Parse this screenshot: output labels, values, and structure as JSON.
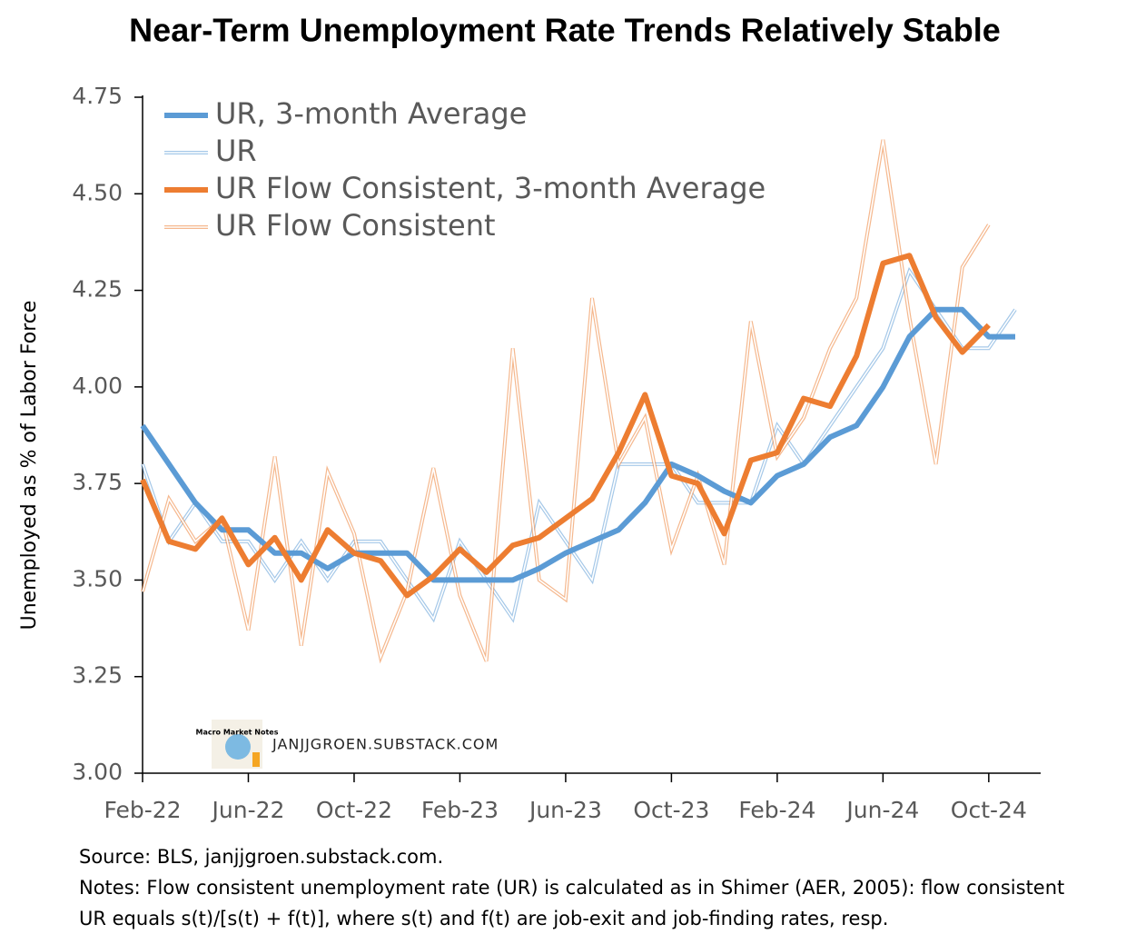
{
  "chart_data": {
    "type": "line",
    "title": "Near-Term Unemployment Rate Trends Relatively Stable",
    "y_label": "Unemployed as % of Labor Force",
    "watermark": "JANJJGROEN.SUBSTACK.COM",
    "logo_text": "Macro Market Notes",
    "source": "Source: BLS, janjjgroen.substack.com.",
    "notes": [
      "Notes: Flow consistent unemployment rate (UR) is calculated as in Shimer (AER, 2005):  flow consistent",
      "UR equals s(t)/[s(t) + f(t)], where s(t) and f(t) are job-exit and job-finding rates, resp."
    ],
    "categories": [
      "Feb-22",
      null,
      null,
      null,
      "Jun-22",
      null,
      null,
      null,
      "Oct-22",
      null,
      null,
      null,
      "Feb-23",
      null,
      null,
      null,
      "Jun-23",
      null,
      null,
      null,
      "Oct-23",
      null,
      null,
      null,
      "Feb-24",
      null,
      null,
      null,
      "Jun-24",
      null,
      null,
      null,
      "Oct-24",
      null
    ],
    "ylim": [
      3.0,
      4.75
    ],
    "yticks": [
      {
        "value": 3.0,
        "label": "3.00"
      },
      3.25,
      {
        "value": 3.5,
        "label": "3.50"
      },
      3.75,
      {
        "value": 4.0,
        "label": "4.00"
      },
      4.25,
      {
        "value": 4.5,
        "label": "4.50"
      },
      4.75
    ],
    "legend": "upper left",
    "series": [
      {
        "name": "UR, 3-month Average",
        "color": "#5b9bd5",
        "style": "thick",
        "values": [
          3.9,
          3.8,
          3.7,
          3.63,
          3.63,
          3.57,
          3.57,
          3.53,
          3.57,
          3.57,
          3.57,
          3.5,
          3.5,
          3.5,
          3.5,
          3.53,
          3.57,
          3.6,
          3.63,
          3.7,
          3.8,
          3.77,
          3.73,
          3.7,
          3.77,
          3.8,
          3.87,
          3.9,
          4.0,
          4.13,
          4.2,
          4.2,
          4.13,
          4.13
        ]
      },
      {
        "name": "UR",
        "color": "#5b9bd5",
        "style": "double",
        "values": [
          3.8,
          3.6,
          3.7,
          3.6,
          3.6,
          3.5,
          3.6,
          3.5,
          3.6,
          3.6,
          3.5,
          3.4,
          3.6,
          3.5,
          3.4,
          3.7,
          3.6,
          3.5,
          3.8,
          3.8,
          3.8,
          3.7,
          3.7,
          3.7,
          3.9,
          3.8,
          3.9,
          4.0,
          4.1,
          4.3,
          4.2,
          4.1,
          4.1,
          4.2
        ]
      },
      {
        "name": "UR Flow Consistent, 3-month Average",
        "color": "#ed7d31",
        "style": "thick",
        "values": [
          3.76,
          3.6,
          3.58,
          3.66,
          3.54,
          3.61,
          3.5,
          3.63,
          3.57,
          3.55,
          3.46,
          3.51,
          3.58,
          3.52,
          3.59,
          3.61,
          3.66,
          3.71,
          3.83,
          3.98,
          3.77,
          3.75,
          3.62,
          3.81,
          3.83,
          3.97,
          3.95,
          4.08,
          4.32,
          4.34,
          4.18,
          4.09,
          4.16,
          null
        ]
      },
      {
        "name": "UR Flow Consistent",
        "color": "#ed7d31",
        "style": "double",
        "values": [
          3.47,
          3.71,
          3.6,
          3.66,
          3.37,
          3.82,
          3.33,
          3.78,
          3.62,
          3.3,
          3.47,
          3.79,
          3.46,
          3.29,
          4.1,
          3.5,
          3.45,
          4.23,
          3.8,
          3.92,
          3.58,
          3.77,
          3.54,
          4.17,
          3.82,
          3.92,
          4.1,
          4.23,
          4.64,
          4.18,
          3.8,
          4.31,
          4.42,
          null
        ]
      }
    ]
  }
}
